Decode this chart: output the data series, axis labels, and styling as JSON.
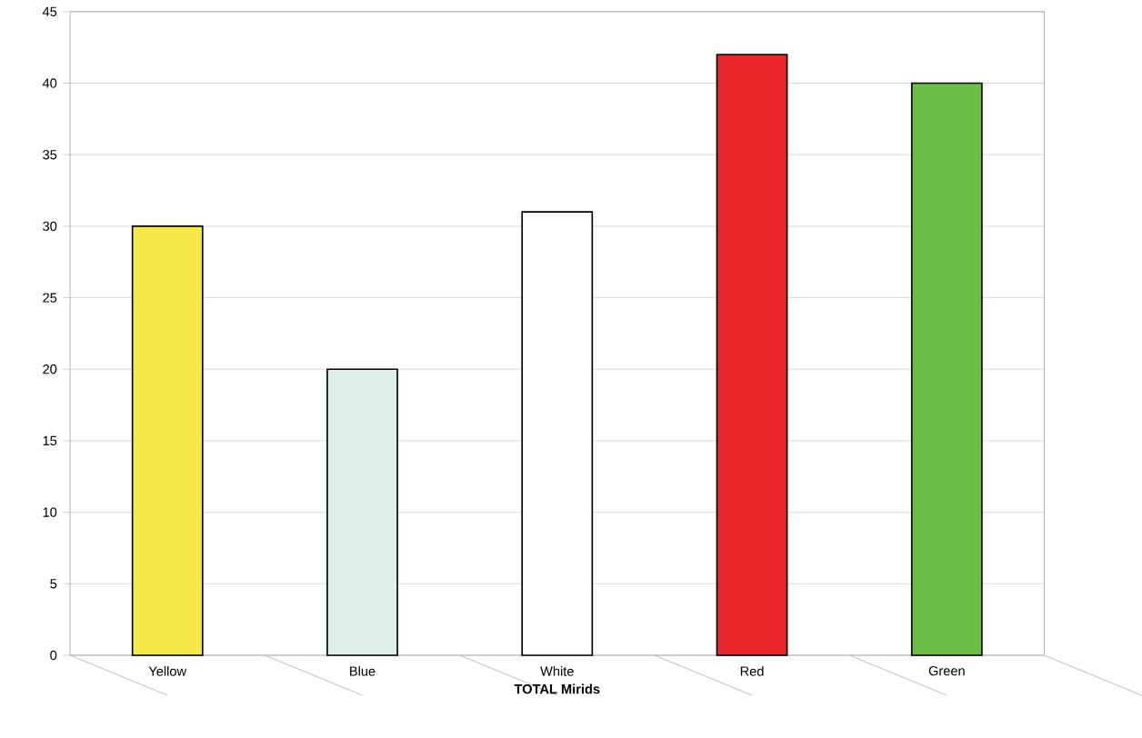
{
  "chart_data": {
    "type": "bar",
    "xlabel": "TOTAL Mirids",
    "categories": [
      "Yellow",
      "Blue",
      "White",
      "Red",
      "Green"
    ],
    "values": [
      30,
      20,
      31,
      42,
      40
    ],
    "colors": [
      "#f7e84a",
      "#dff0ea",
      "#ffffff",
      "#e8262b",
      "#6cbd45"
    ],
    "ylim": [
      0,
      45
    ],
    "yticks": [
      0,
      5,
      10,
      15,
      20,
      25,
      30,
      35,
      40,
      45
    ],
    "grid": "y"
  }
}
